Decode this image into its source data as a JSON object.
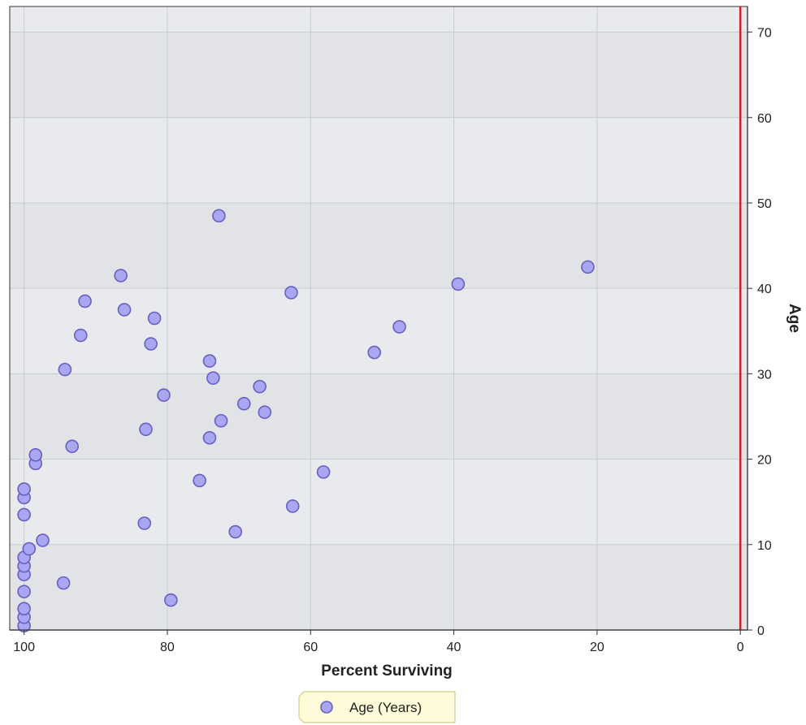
{
  "chart_data": {
    "type": "scatter",
    "title": "",
    "xlabel": "Percent Surviving",
    "ylabel": "Age",
    "xlim": [
      102,
      -1
    ],
    "ylim": [
      0,
      73
    ],
    "x_reversed": true,
    "y_axis_side": "right",
    "grid": true,
    "xticks": [
      100,
      80,
      60,
      40,
      20,
      0
    ],
    "xtick_labels": [
      "100",
      "80",
      "60",
      "40",
      "20",
      "0"
    ],
    "yticks": [
      0,
      10,
      20,
      30,
      40,
      50,
      60,
      70
    ],
    "ytick_labels": [
      "0",
      "10",
      "20",
      "30",
      "40",
      "50",
      "60",
      "70"
    ],
    "legend": {
      "placement": "bottom-center",
      "entries": [
        "Age (Years)"
      ]
    },
    "colors": {
      "marker_fill": "#a9a6f2",
      "marker_stroke": "#6a5fc0",
      "reference_line": "#d02020",
      "band_dark": "#e1e3e7",
      "band_light": "#e8eaed",
      "legend_bg": "#fdfbd8"
    },
    "reference_line_x": 0,
    "series": [
      {
        "name": "Age (Years)",
        "points": [
          {
            "x": 100,
            "y": 0.5
          },
          {
            "x": 100,
            "y": 1.5
          },
          {
            "x": 100,
            "y": 2.5
          },
          {
            "x": 100,
            "y": 4.5
          },
          {
            "x": 100,
            "y": 6.5
          },
          {
            "x": 100,
            "y": 7.5
          },
          {
            "x": 100,
            "y": 8.5
          },
          {
            "x": 99.3,
            "y": 9.5
          },
          {
            "x": 97.4,
            "y": 10.5
          },
          {
            "x": 94.5,
            "y": 5.5
          },
          {
            "x": 100,
            "y": 13.5
          },
          {
            "x": 100,
            "y": 15.5
          },
          {
            "x": 100,
            "y": 16.5
          },
          {
            "x": 98.4,
            "y": 19.5
          },
          {
            "x": 98.4,
            "y": 20.5
          },
          {
            "x": 93.3,
            "y": 21.5
          },
          {
            "x": 94.3,
            "y": 30.5
          },
          {
            "x": 92.1,
            "y": 34.5
          },
          {
            "x": 91.5,
            "y": 38.5
          },
          {
            "x": 86.5,
            "y": 41.5
          },
          {
            "x": 86,
            "y": 37.5
          },
          {
            "x": 83.2,
            "y": 12.5
          },
          {
            "x": 83,
            "y": 23.5
          },
          {
            "x": 82.3,
            "y": 33.5
          },
          {
            "x": 81.8,
            "y": 36.5
          },
          {
            "x": 80.5,
            "y": 27.5
          },
          {
            "x": 79.5,
            "y": 3.5
          },
          {
            "x": 75.5,
            "y": 17.5
          },
          {
            "x": 74.1,
            "y": 22.5
          },
          {
            "x": 74.1,
            "y": 31.5
          },
          {
            "x": 73.6,
            "y": 29.5
          },
          {
            "x": 72.8,
            "y": 48.5
          },
          {
            "x": 72.5,
            "y": 24.5
          },
          {
            "x": 70.5,
            "y": 11.5
          },
          {
            "x": 69.3,
            "y": 26.5
          },
          {
            "x": 67.1,
            "y": 28.5
          },
          {
            "x": 66.4,
            "y": 25.5
          },
          {
            "x": 62.7,
            "y": 39.5
          },
          {
            "x": 62.5,
            "y": 14.5
          },
          {
            "x": 58.2,
            "y": 18.5
          },
          {
            "x": 51.1,
            "y": 32.5
          },
          {
            "x": 47.6,
            "y": 35.5
          },
          {
            "x": 39.4,
            "y": 40.5
          },
          {
            "x": 21.3,
            "y": 42.5
          }
        ]
      }
    ]
  }
}
